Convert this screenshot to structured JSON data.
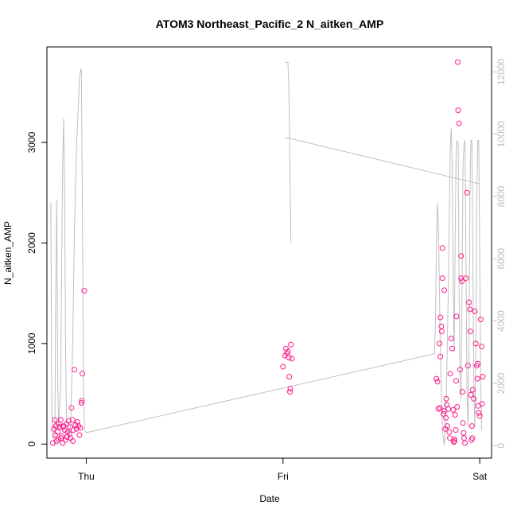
{
  "chart_data": {
    "type": "scatter",
    "title": "ATOM3 Northeast_Pacific_2 N_aitken_AMP",
    "xlabel": "Date",
    "ylabel": "N_aitken_AMP",
    "x_ticks": [
      "Thu",
      "Fri",
      "Sat"
    ],
    "x_range": [
      -0.2,
      2.06
    ],
    "ylim": [
      -140,
      3950
    ],
    "y_ticks": [
      0,
      1000,
      2000,
      3000
    ],
    "y2lim": [
      -400,
      12800
    ],
    "y2_ticks": [
      0,
      2000,
      4000,
      6000,
      8000,
      10000,
      12000
    ],
    "point_color": "#ff1a8c",
    "line_color": "#c0c0c0",
    "points": [
      [
        -0.17,
        10
      ],
      [
        -0.165,
        150
      ],
      [
        -0.16,
        240
      ],
      [
        -0.155,
        180
      ],
      [
        -0.15,
        30
      ],
      [
        -0.145,
        120
      ],
      [
        -0.14,
        200
      ],
      [
        -0.135,
        170
      ],
      [
        -0.13,
        240
      ],
      [
        -0.128,
        60
      ],
      [
        -0.125,
        80
      ],
      [
        -0.12,
        10
      ],
      [
        -0.115,
        180
      ],
      [
        -0.11,
        140
      ],
      [
        -0.105,
        40
      ],
      [
        -0.1,
        200
      ],
      [
        -0.098,
        70
      ],
      [
        -0.095,
        120
      ],
      [
        -0.09,
        230
      ],
      [
        -0.085,
        100
      ],
      [
        -0.082,
        170
      ],
      [
        -0.08,
        60
      ],
      [
        -0.075,
        360
      ],
      [
        -0.07,
        240
      ],
      [
        -0.068,
        30
      ],
      [
        -0.065,
        140
      ],
      [
        -0.06,
        740
      ],
      [
        -0.055,
        190
      ],
      [
        -0.05,
        150
      ],
      [
        -0.045,
        220
      ],
      [
        -0.04,
        180
      ],
      [
        -0.035,
        90
      ],
      [
        -0.03,
        160
      ],
      [
        -0.025,
        410
      ],
      [
        -0.022,
        430
      ],
      [
        -0.02,
        700
      ],
      [
        -0.01,
        1525
      ],
      [
        -0.158,
        90
      ],
      [
        -0.142,
        50
      ],
      [
        -0.118,
        170
      ],
      [
        1.0,
        770
      ],
      [
        1.01,
        880
      ],
      [
        1.015,
        950
      ],
      [
        1.02,
        900
      ],
      [
        1.025,
        920
      ],
      [
        1.03,
        860
      ],
      [
        1.032,
        670
      ],
      [
        1.035,
        520
      ],
      [
        1.037,
        550
      ],
      [
        1.04,
        990
      ],
      [
        1.045,
        850
      ],
      [
        1.78,
        650
      ],
      [
        1.785,
        620
      ],
      [
        1.79,
        350
      ],
      [
        1.795,
        1000
      ],
      [
        1.8,
        1260
      ],
      [
        1.8,
        870
      ],
      [
        1.805,
        1170
      ],
      [
        1.807,
        1120
      ],
      [
        1.81,
        1950
      ],
      [
        1.81,
        1650
      ],
      [
        1.815,
        300
      ],
      [
        1.82,
        330
      ],
      [
        1.82,
        1530
      ],
      [
        1.825,
        150
      ],
      [
        1.83,
        450
      ],
      [
        1.832,
        390
      ],
      [
        1.835,
        180
      ],
      [
        1.84,
        350
      ],
      [
        1.845,
        120
      ],
      [
        1.85,
        700
      ],
      [
        1.855,
        1050
      ],
      [
        1.86,
        950
      ],
      [
        1.865,
        340
      ],
      [
        1.87,
        50
      ],
      [
        1.872,
        30
      ],
      [
        1.875,
        290
      ],
      [
        1.88,
        630
      ],
      [
        1.882,
        1270
      ],
      [
        1.885,
        370
      ],
      [
        1.888,
        3800
      ],
      [
        1.89,
        3320
      ],
      [
        1.895,
        3190
      ],
      [
        1.9,
        740
      ],
      [
        1.905,
        1870
      ],
      [
        1.905,
        1650
      ],
      [
        1.91,
        1620
      ],
      [
        1.912,
        520
      ],
      [
        1.915,
        210
      ],
      [
        1.92,
        60
      ],
      [
        1.925,
        10
      ],
      [
        1.93,
        1650
      ],
      [
        1.935,
        2500
      ],
      [
        1.94,
        780
      ],
      [
        1.945,
        1410
      ],
      [
        1.95,
        1340
      ],
      [
        1.952,
        1120
      ],
      [
        1.955,
        490
      ],
      [
        1.96,
        180
      ],
      [
        1.962,
        60
      ],
      [
        1.965,
        540
      ],
      [
        1.97,
        450
      ],
      [
        1.975,
        1320
      ],
      [
        1.98,
        1000
      ],
      [
        1.985,
        780
      ],
      [
        1.99,
        800
      ],
      [
        1.992,
        380
      ],
      [
        1.995,
        310
      ],
      [
        2.0,
        280
      ],
      [
        2.005,
        1240
      ],
      [
        2.01,
        970
      ],
      [
        2.012,
        400
      ],
      [
        2.015,
        670
      ],
      [
        1.798,
        360
      ],
      [
        1.828,
        260
      ],
      [
        1.848,
        60
      ],
      [
        1.868,
        20
      ],
      [
        1.878,
        140
      ],
      [
        1.918,
        110
      ],
      [
        1.958,
        40
      ],
      [
        1.988,
        650
      ]
    ],
    "line": [
      [
        -0.18,
        7800
      ],
      [
        -0.175,
        1000
      ],
      [
        -0.17,
        300
      ],
      [
        -0.16,
        0
      ],
      [
        -0.155,
        5000
      ],
      [
        -0.15,
        7900
      ],
      [
        -0.145,
        2000
      ],
      [
        -0.14,
        500
      ],
      [
        -0.13,
        2000
      ],
      [
        -0.125,
        6000
      ],
      [
        -0.12,
        9000
      ],
      [
        -0.115,
        10500
      ],
      [
        -0.11,
        8000
      ],
      [
        -0.105,
        3000
      ],
      [
        -0.1,
        800
      ],
      [
        -0.09,
        300
      ],
      [
        -0.08,
        600
      ],
      [
        -0.07,
        3000
      ],
      [
        -0.06,
        7000
      ],
      [
        -0.05,
        9500
      ],
      [
        -0.04,
        11000
      ],
      [
        -0.035,
        11800
      ],
      [
        -0.03,
        12000
      ],
      [
        -0.025,
        12100
      ],
      [
        -0.02,
        8000
      ],
      [
        -0.015,
        2500
      ],
      [
        -0.01,
        500
      ],
      [
        0.0,
        420
      ],
      [
        1.77,
        2950
      ],
      [
        1.775,
        4000
      ],
      [
        1.78,
        6500
      ],
      [
        1.785,
        7800
      ],
      [
        1.79,
        7000
      ],
      [
        1.8,
        3000
      ],
      [
        1.81,
        500
      ],
      [
        1.82,
        0
      ],
      [
        1.83,
        1500
      ],
      [
        1.84,
        5000
      ],
      [
        1.85,
        9500
      ],
      [
        1.855,
        10200
      ],
      [
        1.86,
        9000
      ],
      [
        1.865,
        5000
      ],
      [
        1.87,
        3000
      ],
      [
        1.875,
        6500
      ],
      [
        1.88,
        9500
      ],
      [
        1.885,
        9800
      ],
      [
        1.89,
        9700
      ],
      [
        1.895,
        5000
      ],
      [
        1.9,
        2000
      ],
      [
        1.905,
        1500
      ],
      [
        1.91,
        5000
      ],
      [
        1.915,
        9000
      ],
      [
        1.92,
        9700
      ],
      [
        1.925,
        9800
      ],
      [
        1.93,
        6000
      ],
      [
        1.935,
        1800
      ],
      [
        1.94,
        600
      ],
      [
        1.945,
        3000
      ],
      [
        1.95,
        8000
      ],
      [
        1.955,
        9800
      ],
      [
        1.96,
        9800
      ],
      [
        1.965,
        6000
      ],
      [
        1.97,
        1800
      ],
      [
        1.975,
        600
      ],
      [
        1.98,
        3000
      ],
      [
        1.985,
        8000
      ],
      [
        1.99,
        9800
      ],
      [
        1.995,
        9800
      ],
      [
        2.0,
        6000
      ],
      [
        2.005,
        2000
      ],
      [
        2.01,
        500
      ]
    ],
    "line_segments": [
      [
        [
          1.01,
          12300
        ],
        [
          1.025,
          12300
        ],
        [
          1.03,
          11500
        ],
        [
          1.035,
          9000
        ],
        [
          1.04,
          6500
        ]
      ],
      [
        [
          1.01,
          9900
        ],
        [
          2.0,
          8400
        ]
      ]
    ]
  }
}
